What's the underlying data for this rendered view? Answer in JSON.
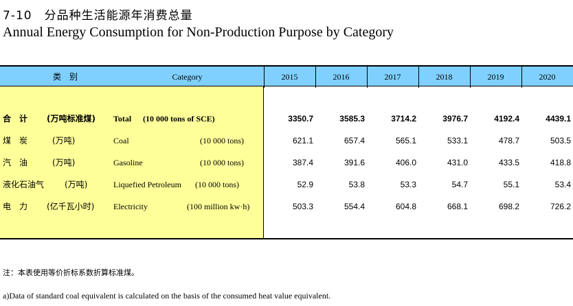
{
  "title_cn": "7-10　分品种生活能源年消费总量",
  "title_en": "Annual Energy Consumption for Non-Production Purpose by Category",
  "header": {
    "col_cn": "类　别",
    "col_en": "Category",
    "years": [
      "2015",
      "2016",
      "2017",
      "2018",
      "2019",
      "2020"
    ]
  },
  "rows": [
    {
      "cn": "合　计",
      "cn_unit": "(万吨标准煤)",
      "en": "Total",
      "en_unit": "(10 000 tons of SCE)",
      "values": [
        "3350.7",
        "3585.3",
        "3714.2",
        "3976.7",
        "4192.4",
        "4439.1"
      ],
      "bold": true
    },
    {
      "cn": "煤　炭",
      "cn_unit": "(万吨)",
      "en": "Coal",
      "en_unit": "(10 000 tons)",
      "values": [
        "621.1",
        "657.4",
        "565.1",
        "533.1",
        "478.7",
        "503.5"
      ],
      "bold": false
    },
    {
      "cn": "汽　油",
      "cn_unit": "(万吨)",
      "en": "Gasoline",
      "en_unit": "(10 000 tons)",
      "values": [
        "387.4",
        "391.6",
        "406.0",
        "431.0",
        "433.5",
        "418.8"
      ],
      "bold": false
    },
    {
      "cn": "液化石油气",
      "cn_unit": "(万吨)",
      "en": "Liquefied  Petroleum",
      "en_unit": "(10 000 tons)",
      "values": [
        "52.9",
        "53.8",
        "53.3",
        "54.7",
        "55.1",
        "53.4"
      ],
      "bold": false
    },
    {
      "cn": "电　力",
      "cn_unit": "(亿千瓦小时)",
      "en": "Electricity",
      "en_unit": "(100 million kw·h)",
      "values": [
        "503.3",
        "554.4",
        "604.8",
        "668.1",
        "698.2",
        "726.2"
      ],
      "bold": false
    }
  ],
  "notes": {
    "cn": "注：本表使用等价折标系数折算标准煤。",
    "en": "a)Data of standard coal equivalent is calculated on the basis of the consumed heat value equivalent."
  },
  "colors": {
    "header_bg": "#7fd0ff",
    "category_bg": "#ffff99"
  }
}
